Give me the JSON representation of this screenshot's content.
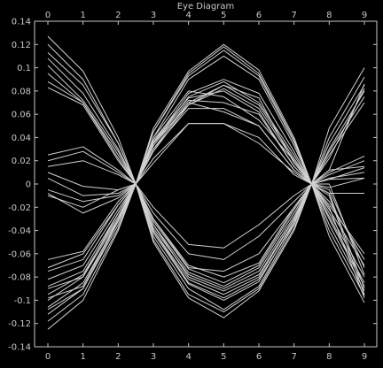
{
  "chart_data": {
    "type": "line",
    "title": "Eye Diagram",
    "xlabel": "",
    "ylabel": "",
    "xlim": [
      0,
      9
    ],
    "ylim": [
      -0.14,
      0.14
    ],
    "x": [
      0,
      1,
      2,
      2.5,
      3,
      4,
      5,
      6,
      7,
      7.5,
      8,
      9
    ],
    "x_ticks": [
      "0",
      "1",
      "2",
      "3",
      "4",
      "5",
      "6",
      "7",
      "8",
      "9"
    ],
    "y_ticks": [
      "0.14",
      "0.12",
      "0.1",
      "0.08",
      "0.06",
      "0.04",
      "0.02",
      "0",
      "-0.02",
      "-0.04",
      "-0.06",
      "-0.08",
      "-0.1",
      "-0.12",
      "-0.14"
    ],
    "grid": false,
    "colors": {
      "background": "#000000",
      "axes": "#c8c8c8",
      "trace": "#d0d0d0"
    },
    "series": [
      {
        "values": [
          0.127,
          0.097,
          0.04,
          0,
          0.048,
          0.097,
          0.12,
          0.098,
          0.04,
          0,
          0.048,
          0.1
        ]
      },
      {
        "values": [
          0.12,
          0.09,
          0.035,
          0,
          0.045,
          0.095,
          0.118,
          0.095,
          0.038,
          0,
          0.04,
          0.092
        ]
      },
      {
        "values": [
          0.113,
          0.085,
          0.035,
          0,
          0.045,
          0.093,
          0.115,
          0.093,
          0.036,
          0,
          0.035,
          0.085
        ]
      },
      {
        "values": [
          0.108,
          0.078,
          0.03,
          0,
          0.04,
          0.09,
          0.11,
          0.09,
          0.033,
          0,
          0.03,
          0.08
        ]
      },
      {
        "values": [
          0.102,
          0.072,
          0.028,
          0,
          0.036,
          0.078,
          0.09,
          0.078,
          0.028,
          0,
          0.028,
          0.075
        ]
      },
      {
        "values": [
          0.095,
          0.07,
          0.025,
          0,
          0.035,
          0.075,
          0.088,
          0.07,
          0.025,
          0,
          0.025,
          0.07
        ]
      },
      {
        "values": [
          0.088,
          0.07,
          0.022,
          0,
          0.03,
          0.07,
          0.085,
          0.068,
          0.022,
          0,
          0.022,
          0.082
        ]
      },
      {
        "values": [
          0.083,
          0.068,
          0.02,
          0,
          0.028,
          0.068,
          0.082,
          0.065,
          0.02,
          0,
          0.012,
          0.086
        ]
      },
      {
        "values": [
          0.025,
          0.032,
          0.012,
          0,
          0.022,
          0.052,
          0.052,
          0.035,
          0.01,
          0,
          0.01,
          0.024
        ]
      },
      {
        "values": [
          0.02,
          0.028,
          0.01,
          0,
          0.018,
          0.052,
          0.052,
          0.04,
          0.008,
          0,
          0.008,
          0.02
        ]
      },
      {
        "values": [
          0.015,
          0.02,
          0.008,
          0,
          0.03,
          0.065,
          0.065,
          0.05,
          0.012,
          0,
          0.005,
          0.01
        ]
      },
      {
        "values": [
          0.01,
          -0.002,
          -0.005,
          0,
          0.035,
          0.072,
          0.07,
          0.06,
          0.015,
          0,
          -0.003,
          0.005
        ]
      },
      {
        "values": [
          0.005,
          -0.01,
          -0.008,
          0,
          0.04,
          0.08,
          0.075,
          0.055,
          0.02,
          0,
          0.004,
          0.005
        ]
      },
      {
        "values": [
          -0.005,
          -0.015,
          -0.01,
          0,
          0.033,
          0.07,
          0.062,
          0.05,
          0.012,
          0,
          -0.008,
          -0.008
        ]
      },
      {
        "values": [
          -0.008,
          -0.025,
          -0.012,
          0,
          0.038,
          0.074,
          0.08,
          0.062,
          0.015,
          0,
          0.012,
          0.015
        ]
      },
      {
        "values": [
          -0.01,
          -0.02,
          -0.005,
          0,
          0.035,
          0.068,
          0.085,
          0.074,
          0.018,
          0,
          0.004,
          0.014
        ]
      },
      {
        "values": [
          -0.125,
          -0.1,
          -0.04,
          0,
          -0.05,
          -0.098,
          -0.115,
          -0.092,
          -0.04,
          0,
          -0.045,
          -0.102
        ]
      },
      {
        "values": [
          -0.118,
          -0.095,
          -0.038,
          0,
          -0.048,
          -0.095,
          -0.11,
          -0.09,
          -0.038,
          0,
          -0.04,
          -0.096
        ]
      },
      {
        "values": [
          -0.112,
          -0.09,
          -0.035,
          0,
          -0.045,
          -0.09,
          -0.108,
          -0.088,
          -0.035,
          0,
          -0.035,
          -0.092
        ]
      },
      {
        "values": [
          -0.106,
          -0.085,
          -0.032,
          0,
          -0.042,
          -0.086,
          -0.1,
          -0.084,
          -0.032,
          0,
          -0.03,
          -0.088
        ]
      },
      {
        "values": [
          -0.1,
          -0.08,
          -0.03,
          0,
          -0.04,
          -0.082,
          -0.095,
          -0.08,
          -0.03,
          0,
          -0.028,
          -0.085
        ]
      },
      {
        "values": [
          -0.095,
          -0.078,
          -0.028,
          0,
          -0.038,
          -0.078,
          -0.09,
          -0.075,
          -0.028,
          0,
          -0.025,
          -0.08
        ]
      },
      {
        "values": [
          -0.088,
          -0.075,
          -0.025,
          0,
          -0.035,
          -0.076,
          -0.088,
          -0.072,
          -0.025,
          0,
          -0.022,
          -0.07
        ]
      },
      {
        "values": [
          -0.082,
          -0.07,
          -0.022,
          0,
          -0.032,
          -0.073,
          -0.085,
          -0.07,
          -0.022,
          0,
          -0.018,
          -0.06
        ]
      },
      {
        "values": [
          -0.072,
          -0.06,
          -0.018,
          0,
          -0.03,
          -0.07,
          -0.08,
          -0.068,
          -0.02,
          0,
          -0.015,
          -0.065
        ]
      },
      {
        "values": [
          -0.065,
          -0.058,
          -0.015,
          0,
          -0.02,
          -0.052,
          -0.055,
          -0.035,
          -0.01,
          0,
          0.0,
          -0.078
        ]
      },
      {
        "values": [
          -0.075,
          -0.065,
          -0.018,
          0,
          -0.025,
          -0.06,
          -0.065,
          -0.045,
          -0.015,
          0,
          -0.005,
          -0.072
        ]
      },
      {
        "values": [
          -0.09,
          -0.08,
          -0.025,
          0,
          -0.03,
          -0.072,
          -0.075,
          -0.06,
          -0.02,
          0,
          -0.008,
          -0.09
        ]
      },
      {
        "values": [
          -0.098,
          -0.088,
          -0.03,
          0,
          -0.035,
          -0.08,
          -0.092,
          -0.078,
          -0.03,
          0,
          -0.01,
          -0.095
        ]
      },
      {
        "values": [
          -0.108,
          -0.09,
          -0.032,
          0,
          -0.04,
          -0.085,
          -0.098,
          -0.082,
          -0.034,
          0,
          -0.02,
          -0.098
        ]
      }
    ]
  }
}
